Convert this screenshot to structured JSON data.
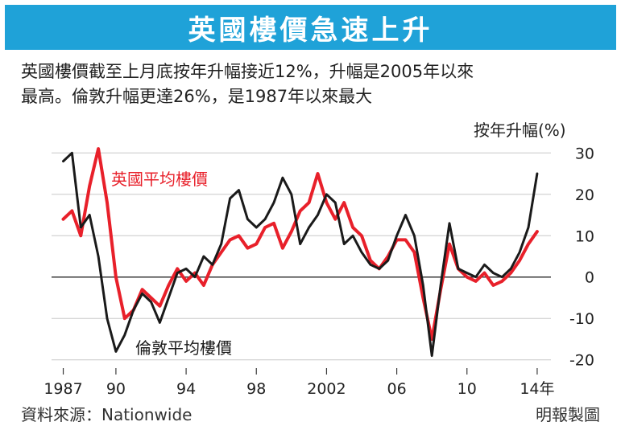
{
  "header": {
    "title": "英國樓價急速上升"
  },
  "description": {
    "line1": "英國樓價截至上月底按年升幅接近12%，升幅是2005年以來",
    "line2": "最高。倫敦升幅更達26%，是1987年以來最大"
  },
  "chart_data": {
    "type": "line",
    "ylabel": "按年升幅(%)",
    "ylim": [
      -22,
      32
    ],
    "yticks": [
      30,
      20,
      10,
      0,
      -10,
      -20
    ],
    "xlim": [
      1986.7,
      2014.6
    ],
    "xticks": [
      {
        "value": 1987,
        "label": "1987"
      },
      {
        "value": 1990,
        "label": "90"
      },
      {
        "value": 1994,
        "label": "94"
      },
      {
        "value": 1998,
        "label": "98"
      },
      {
        "value": 2002,
        "label": "2002"
      },
      {
        "value": 2006,
        "label": "06"
      },
      {
        "value": 2010,
        "label": "10"
      },
      {
        "value": 2014,
        "label": "14年"
      }
    ],
    "series": [
      {
        "name": "英國平均樓價",
        "color": "#e8202a",
        "x": [
          1987.0,
          1987.5,
          1988.0,
          1988.5,
          1989.0,
          1989.5,
          1990.0,
          1990.5,
          1991.0,
          1991.5,
          1992.0,
          1992.5,
          1993.0,
          1993.5,
          1994.0,
          1994.5,
          1995.0,
          1995.5,
          1996.0,
          1996.5,
          1997.0,
          1997.5,
          1998.0,
          1998.5,
          1999.0,
          1999.5,
          2000.0,
          2000.5,
          2001.0,
          2001.5,
          2002.0,
          2002.5,
          2003.0,
          2003.5,
          2004.0,
          2004.5,
          2005.0,
          2005.5,
          2006.0,
          2006.5,
          2007.0,
          2007.5,
          2008.0,
          2008.5,
          2009.0,
          2009.5,
          2010.0,
          2010.5,
          2011.0,
          2011.5,
          2012.0,
          2012.5,
          2013.0,
          2013.5,
          2014.0
        ],
        "values": [
          14,
          16,
          10,
          22,
          31,
          18,
          0,
          -10,
          -8,
          -3,
          -5,
          -7,
          -2,
          2,
          -1,
          1,
          -2,
          3,
          6,
          9,
          10,
          7,
          8,
          12,
          13,
          7,
          11,
          16,
          18,
          25,
          18,
          14,
          18,
          12,
          10,
          4,
          2,
          5,
          9,
          9,
          6,
          -5,
          -15,
          -3,
          8,
          2,
          0,
          -1,
          1,
          -2,
          -1,
          1,
          4,
          8,
          11
        ]
      },
      {
        "name": "倫敦平均樓價",
        "color": "#1a1a1a",
        "x": [
          1987.0,
          1987.5,
          1988.0,
          1988.5,
          1989.0,
          1989.5,
          1990.0,
          1990.5,
          1991.0,
          1991.5,
          1992.0,
          1992.5,
          1993.0,
          1993.5,
          1994.0,
          1994.5,
          1995.0,
          1995.5,
          1996.0,
          1996.5,
          1997.0,
          1997.5,
          1998.0,
          1998.5,
          1999.0,
          1999.5,
          2000.0,
          2000.5,
          2001.0,
          2001.5,
          2002.0,
          2002.5,
          2003.0,
          2003.5,
          2004.0,
          2004.5,
          2005.0,
          2005.5,
          2006.0,
          2006.5,
          2007.0,
          2007.5,
          2008.0,
          2008.5,
          2009.0,
          2009.5,
          2010.0,
          2010.5,
          2011.0,
          2011.5,
          2012.0,
          2012.5,
          2013.0,
          2013.5,
          2014.0
        ],
        "values": [
          28,
          30,
          12,
          15,
          5,
          -10,
          -18,
          -14,
          -8,
          -4,
          -6,
          -11,
          -5,
          1,
          2,
          0,
          5,
          3,
          8,
          19,
          21,
          14,
          12,
          14,
          18,
          24,
          20,
          8,
          12,
          15,
          20,
          18,
          8,
          10,
          6,
          3,
          2,
          4,
          10,
          15,
          10,
          -2,
          -19,
          -2,
          13,
          2,
          1,
          0,
          3,
          1,
          0,
          2,
          6,
          12,
          25
        ]
      }
    ],
    "annotations": [
      {
        "text": "英國平均樓價",
        "color": "#e8202a"
      },
      {
        "text": "倫敦平均樓價",
        "color": "#1a1a1a"
      }
    ]
  },
  "footer": {
    "source": "資料來源：Nationwide",
    "credit": "明報製圖"
  },
  "colors": {
    "banner": "#1fa2d8",
    "uk": "#e8202a",
    "london": "#1a1a1a",
    "grid": "#c8c8c8"
  }
}
